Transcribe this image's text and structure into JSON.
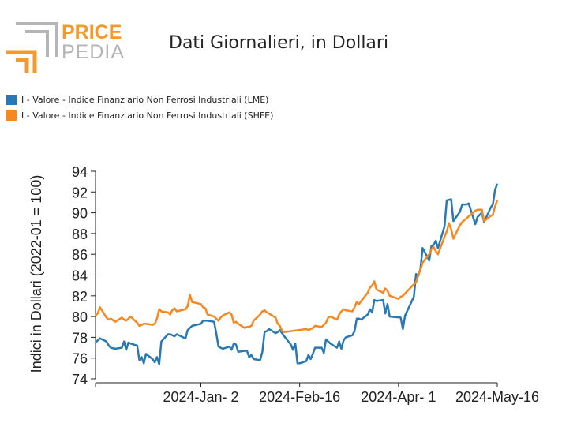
{
  "header": {
    "logo_price": "PRICE",
    "logo_pedia": "PEDIA",
    "title": "Dati Giornalieri, in Dollari"
  },
  "colors": {
    "lme": "#2878b4",
    "shfe": "#f5891f",
    "logo_orange": "#f39a2b",
    "logo_gray": "#b5b5b5"
  },
  "legend": [
    {
      "label": "I - Valore - Indice Finanziario Non Ferrosi Industriali (LME)",
      "color": "#2878b4"
    },
    {
      "label": "I - Valore - Indice Finanziario Non Ferrosi Industriali (SHFE)",
      "color": "#f5891f"
    }
  ],
  "chart_data": {
    "type": "line",
    "title": "",
    "xlabel": "",
    "ylabel": "Indici in Dollari (2022-01 = 100)",
    "ylim": [
      74,
      94
    ],
    "xlim": [
      "2023-11-15",
      "2024-05-16"
    ],
    "yticks": [
      74,
      76,
      78,
      80,
      82,
      84,
      86,
      88,
      90,
      92,
      94
    ],
    "xticks": [
      {
        "date": "2024-01-02",
        "label": "2024-Jan- 2"
      },
      {
        "date": "2024-02-16",
        "label": "2024-Feb-16"
      },
      {
        "date": "2024-04-01",
        "label": "2024-Apr- 1"
      },
      {
        "date": "2024-05-16",
        "label": "2024-May-16"
      }
    ],
    "series": [
      {
        "name": "I - Valore - Indice Finanziario Non Ferrosi Industriali (LME)",
        "color": "#2878b4",
        "points": [
          [
            "2023-11-15",
            77.5
          ],
          [
            "2023-11-16",
            77.7
          ],
          [
            "2023-11-17",
            77.9
          ],
          [
            "2023-11-20",
            77.6
          ],
          [
            "2023-11-21",
            77.2
          ],
          [
            "2023-11-22",
            77.0
          ],
          [
            "2023-11-24",
            76.9
          ],
          [
            "2023-11-27",
            77.0
          ],
          [
            "2023-11-28",
            77.6
          ],
          [
            "2023-11-29",
            76.8
          ],
          [
            "2023-11-30",
            77.5
          ],
          [
            "2023-12-01",
            77.4
          ],
          [
            "2023-12-04",
            77.2
          ],
          [
            "2023-12-05",
            75.8
          ],
          [
            "2023-12-06",
            76.1
          ],
          [
            "2023-12-07",
            75.5
          ],
          [
            "2023-12-08",
            76.4
          ],
          [
            "2023-12-11",
            75.9
          ],
          [
            "2023-12-12",
            75.6
          ],
          [
            "2023-12-13",
            76.1
          ],
          [
            "2023-12-14",
            75.4
          ],
          [
            "2023-12-15",
            77.6
          ],
          [
            "2023-12-18",
            78.3
          ],
          [
            "2023-12-19",
            78.3
          ],
          [
            "2023-12-20",
            78.2
          ],
          [
            "2023-12-21",
            78.1
          ],
          [
            "2023-12-22",
            78.3
          ],
          [
            "2023-12-26",
            77.9
          ],
          [
            "2023-12-27",
            78.7
          ],
          [
            "2023-12-28",
            78.9
          ],
          [
            "2023-12-29",
            79.1
          ],
          [
            "2024-01-02",
            79.3
          ],
          [
            "2024-01-03",
            79.6
          ],
          [
            "2024-01-04",
            79.6
          ],
          [
            "2024-01-05",
            79.6
          ],
          [
            "2024-01-08",
            79.5
          ],
          [
            "2024-01-09",
            78.4
          ],
          [
            "2024-01-10",
            77.1
          ],
          [
            "2024-01-11",
            77.0
          ],
          [
            "2024-01-12",
            76.9
          ],
          [
            "2024-01-15",
            77.1
          ],
          [
            "2024-01-16",
            76.8
          ],
          [
            "2024-01-17",
            77.4
          ],
          [
            "2024-01-18",
            77.3
          ],
          [
            "2024-01-19",
            76.6
          ],
          [
            "2024-01-22",
            76.7
          ],
          [
            "2024-01-23",
            76.7
          ],
          [
            "2024-01-24",
            76.1
          ],
          [
            "2024-01-25",
            76.3
          ],
          [
            "2024-01-26",
            75.9
          ],
          [
            "2024-01-29",
            75.8
          ],
          [
            "2024-01-30",
            76.6
          ],
          [
            "2024-01-31",
            78.5
          ],
          [
            "2024-02-01",
            78.6
          ],
          [
            "2024-02-02",
            78.8
          ],
          [
            "2024-02-05",
            78.4
          ],
          [
            "2024-02-06",
            78.5
          ],
          [
            "2024-02-07",
            78.7
          ],
          [
            "2024-02-08",
            78.4
          ],
          [
            "2024-02-09",
            78.1
          ],
          [
            "2024-02-12",
            77.3
          ],
          [
            "2024-02-13",
            76.8
          ],
          [
            "2024-02-14",
            77.4
          ],
          [
            "2024-02-15",
            75.5
          ],
          [
            "2024-02-16",
            75.5
          ],
          [
            "2024-02-19",
            75.7
          ],
          [
            "2024-02-20",
            76.3
          ],
          [
            "2024-02-21",
            75.9
          ],
          [
            "2024-02-22",
            76.4
          ],
          [
            "2024-02-23",
            77.0
          ],
          [
            "2024-02-26",
            77.0
          ],
          [
            "2024-02-27",
            76.5
          ],
          [
            "2024-02-28",
            77.8
          ],
          [
            "2024-02-29",
            77.6
          ],
          [
            "2024-03-01",
            77.4
          ],
          [
            "2024-03-04",
            77.0
          ],
          [
            "2024-03-05",
            77.6
          ],
          [
            "2024-03-06",
            76.9
          ],
          [
            "2024-03-07",
            77.7
          ],
          [
            "2024-03-08",
            78.0
          ],
          [
            "2024-03-11",
            78.2
          ],
          [
            "2024-03-12",
            78.6
          ],
          [
            "2024-03-13",
            79.8
          ],
          [
            "2024-03-14",
            79.8
          ],
          [
            "2024-03-15",
            79.7
          ],
          [
            "2024-03-18",
            80.2
          ],
          [
            "2024-03-19",
            80.7
          ],
          [
            "2024-03-20",
            80.4
          ],
          [
            "2024-03-21",
            81.6
          ],
          [
            "2024-03-22",
            81.5
          ],
          [
            "2024-03-25",
            81.6
          ],
          [
            "2024-03-26",
            80.3
          ],
          [
            "2024-03-27",
            81.2
          ],
          [
            "2024-03-28",
            80.0
          ],
          [
            "2024-04-02",
            79.9
          ],
          [
            "2024-04-03",
            78.8
          ],
          [
            "2024-04-04",
            80.1
          ],
          [
            "2024-04-08",
            81.9
          ],
          [
            "2024-04-09",
            84.1
          ],
          [
            "2024-04-10",
            83.9
          ],
          [
            "2024-04-11",
            84.6
          ],
          [
            "2024-04-12",
            86.6
          ],
          [
            "2024-04-15",
            85.4
          ],
          [
            "2024-04-16",
            86.8
          ],
          [
            "2024-04-17",
            86.9
          ],
          [
            "2024-04-18",
            87.3
          ],
          [
            "2024-04-19",
            86.6
          ],
          [
            "2024-04-22",
            88.7
          ],
          [
            "2024-04-23",
            91.2
          ],
          [
            "2024-04-25",
            91.3
          ],
          [
            "2024-04-26",
            89.2
          ],
          [
            "2024-04-29",
            90.1
          ],
          [
            "2024-04-30",
            90.8
          ],
          [
            "2024-05-01",
            90.8
          ],
          [
            "2024-05-02",
            90.8
          ],
          [
            "2024-05-03",
            90.9
          ],
          [
            "2024-05-06",
            88.9
          ],
          [
            "2024-05-07",
            89.6
          ],
          [
            "2024-05-08",
            89.8
          ],
          [
            "2024-05-09",
            90.0
          ],
          [
            "2024-05-10",
            89.1
          ],
          [
            "2024-05-13",
            90.5
          ],
          [
            "2024-05-14",
            90.8
          ],
          [
            "2024-05-15",
            92.2
          ],
          [
            "2024-05-16",
            92.8
          ]
        ]
      },
      {
        "name": "I - Valore - Indice Finanziario Non Ferrosi Industriali (SHFE)",
        "color": "#f5891f",
        "points": [
          [
            "2023-11-15",
            80.1
          ],
          [
            "2023-11-16",
            80.3
          ],
          [
            "2023-11-17",
            80.9
          ],
          [
            "2023-11-20",
            79.9
          ],
          [
            "2023-11-21",
            79.7
          ],
          [
            "2023-11-22",
            79.8
          ],
          [
            "2023-11-24",
            79.5
          ],
          [
            "2023-11-27",
            79.9
          ],
          [
            "2023-11-28",
            79.7
          ],
          [
            "2023-11-29",
            79.6
          ],
          [
            "2023-11-30",
            79.8
          ],
          [
            "2023-12-01",
            80.0
          ],
          [
            "2023-12-04",
            79.4
          ],
          [
            "2023-12-05",
            79.1
          ],
          [
            "2023-12-06",
            79.2
          ],
          [
            "2023-12-07",
            79.3
          ],
          [
            "2023-12-08",
            79.3
          ],
          [
            "2023-12-11",
            79.2
          ],
          [
            "2023-12-12",
            79.3
          ],
          [
            "2023-12-13",
            79.8
          ],
          [
            "2023-12-14",
            80.7
          ],
          [
            "2023-12-15",
            80.5
          ],
          [
            "2023-12-18",
            80.4
          ],
          [
            "2023-12-19",
            80.2
          ],
          [
            "2023-12-20",
            80.6
          ],
          [
            "2023-12-21",
            80.8
          ],
          [
            "2023-12-22",
            80.5
          ],
          [
            "2023-12-26",
            80.7
          ],
          [
            "2023-12-27",
            81.0
          ],
          [
            "2023-12-28",
            82.1
          ],
          [
            "2023-12-29",
            81.4
          ],
          [
            "2024-01-02",
            81.2
          ],
          [
            "2024-01-03",
            80.9
          ],
          [
            "2024-01-04",
            80.8
          ],
          [
            "2024-01-05",
            80.2
          ],
          [
            "2024-01-08",
            80.0
          ],
          [
            "2024-01-09",
            79.8
          ],
          [
            "2024-01-10",
            79.6
          ],
          [
            "2024-01-11",
            79.9
          ],
          [
            "2024-01-12",
            80.1
          ],
          [
            "2024-01-15",
            80.4
          ],
          [
            "2024-01-16",
            80.2
          ],
          [
            "2024-01-17",
            79.4
          ],
          [
            "2024-01-18",
            79.5
          ],
          [
            "2024-01-19",
            79.3
          ],
          [
            "2024-01-22",
            78.9
          ],
          [
            "2024-01-23",
            79.0
          ],
          [
            "2024-01-24",
            79.0
          ],
          [
            "2024-01-25",
            79.1
          ],
          [
            "2024-01-26",
            79.6
          ],
          [
            "2024-01-29",
            80.2
          ],
          [
            "2024-01-30",
            80.5
          ],
          [
            "2024-01-31",
            80.6
          ],
          [
            "2024-02-01",
            80.4
          ],
          [
            "2024-02-02",
            80.3
          ],
          [
            "2024-02-05",
            79.9
          ],
          [
            "2024-02-06",
            79.3
          ],
          [
            "2024-02-07",
            79.1
          ],
          [
            "2024-02-08",
            78.6
          ],
          [
            "2024-02-09",
            78.5
          ],
          [
            "2024-02-19",
            78.8
          ],
          [
            "2024-02-20",
            78.7
          ],
          [
            "2024-02-21",
            78.8
          ],
          [
            "2024-02-22",
            78.9
          ],
          [
            "2024-02-23",
            79.1
          ],
          [
            "2024-02-26",
            79.0
          ],
          [
            "2024-02-27",
            79.2
          ],
          [
            "2024-02-28",
            79.4
          ],
          [
            "2024-02-29",
            79.9
          ],
          [
            "2024-03-01",
            80.0
          ],
          [
            "2024-03-04",
            79.7
          ],
          [
            "2024-03-05",
            80.2
          ],
          [
            "2024-03-06",
            80.5
          ],
          [
            "2024-03-07",
            80.7
          ],
          [
            "2024-03-08",
            80.6
          ],
          [
            "2024-03-11",
            80.5
          ],
          [
            "2024-03-12",
            80.9
          ],
          [
            "2024-03-13",
            81.4
          ],
          [
            "2024-03-14",
            81.2
          ],
          [
            "2024-03-15",
            81.5
          ],
          [
            "2024-03-18",
            82.3
          ],
          [
            "2024-03-19",
            82.8
          ],
          [
            "2024-03-20",
            83.0
          ],
          [
            "2024-03-21",
            83.4
          ],
          [
            "2024-03-22",
            82.6
          ],
          [
            "2024-03-25",
            82.3
          ],
          [
            "2024-03-26",
            82.7
          ],
          [
            "2024-03-27",
            82.5
          ],
          [
            "2024-03-28",
            82.0
          ],
          [
            "2024-04-01",
            81.7
          ],
          [
            "2024-04-02",
            81.9
          ],
          [
            "2024-04-03",
            82.0
          ],
          [
            "2024-04-08",
            83.1
          ],
          [
            "2024-04-09",
            83.3
          ],
          [
            "2024-04-10",
            84.0
          ],
          [
            "2024-04-11",
            84.5
          ],
          [
            "2024-04-12",
            85.2
          ],
          [
            "2024-04-15",
            86.0
          ],
          [
            "2024-04-16",
            86.5
          ],
          [
            "2024-04-17",
            86.7
          ],
          [
            "2024-04-18",
            86.3
          ],
          [
            "2024-04-19",
            86.0
          ],
          [
            "2024-04-22",
            87.7
          ],
          [
            "2024-04-23",
            88.2
          ],
          [
            "2024-04-24",
            89.0
          ],
          [
            "2024-04-25",
            88.4
          ],
          [
            "2024-04-26",
            87.5
          ],
          [
            "2024-04-29",
            88.8
          ],
          [
            "2024-04-30",
            89.1
          ],
          [
            "2024-05-06",
            90.2
          ],
          [
            "2024-05-07",
            90.3
          ],
          [
            "2024-05-08",
            90.3
          ],
          [
            "2024-05-09",
            90.3
          ],
          [
            "2024-05-10",
            89.2
          ],
          [
            "2024-05-13",
            89.7
          ],
          [
            "2024-05-14",
            89.8
          ],
          [
            "2024-05-15",
            90.6
          ],
          [
            "2024-05-16",
            91.2
          ]
        ]
      }
    ],
    "grid": false,
    "legend_position": "top-left"
  }
}
